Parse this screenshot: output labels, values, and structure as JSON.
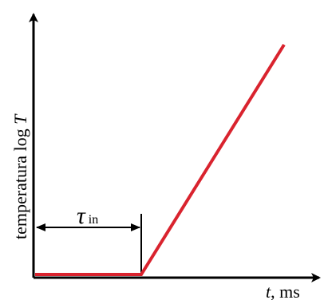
{
  "y_axis": {
    "label_prefix": "temperatura log ",
    "label_var": "T"
  },
  "x_axis": {
    "label_var": "t",
    "label_unit": ", ms"
  },
  "delay": {
    "symbol": "τ",
    "subscript": "in"
  },
  "colors": {
    "curve": "#d9232e",
    "axes": "#000000"
  }
}
